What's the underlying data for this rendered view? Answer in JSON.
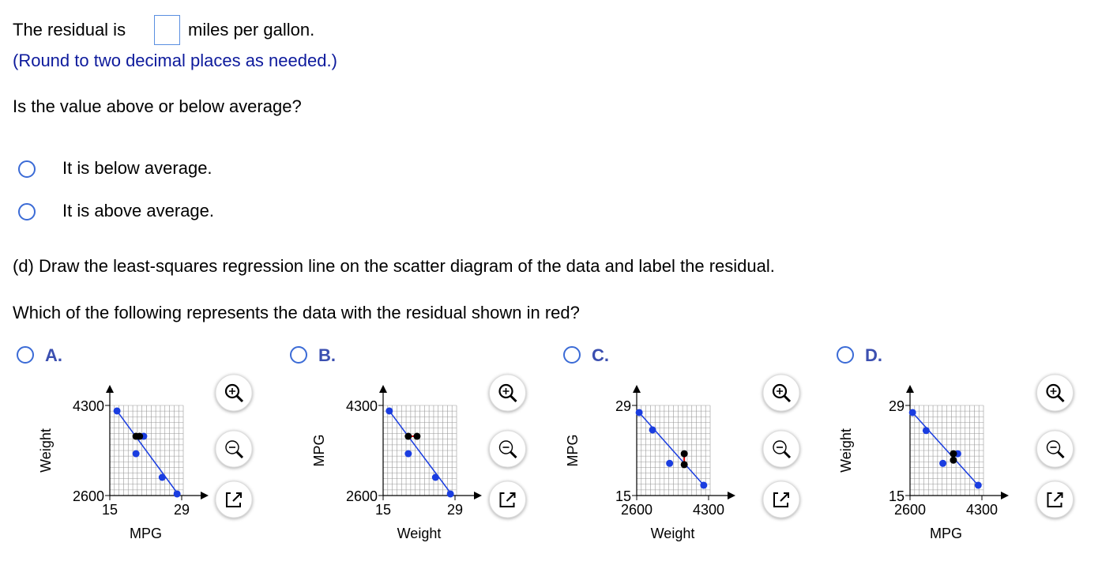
{
  "question": {
    "residual_prefix": "The residual is",
    "residual_suffix": "miles per gallon.",
    "round_note": "(Round to two decimal places as needed.)",
    "above_below": "Is the value above or below average?",
    "choices": [
      "It is below average.",
      "It is above average."
    ],
    "part_d": "(d) Draw the least-squares regression line on the scatter diagram of the data and label the residual.",
    "which": "Which of the following represents the data with the residual shown in red?"
  },
  "options": [
    {
      "letter": "A.",
      "chart": {
        "type": "scatter",
        "x_label": "MPG",
        "y_label": "Weight",
        "xlim": [
          15,
          29
        ],
        "ylim": [
          2600,
          4300
        ],
        "xticks": [
          15,
          29
        ],
        "yticks": [
          2600,
          4300
        ],
        "series": [
          {
            "color": "#1a3de0",
            "x": [
              16.4,
              21.6,
              20.1,
              25.2,
              28.1
            ],
            "y": [
              4196,
              3718,
              3390,
              2943,
              2630
            ]
          },
          {
            "color": "#000000",
            "x": [
              20.1,
              20.8
            ],
            "y": [
              3718,
              3718
            ]
          }
        ],
        "line": {
          "color": "#1a3de0",
          "x": [
            16.4,
            28.5
          ],
          "y": [
            4196,
            2600
          ]
        }
      }
    },
    {
      "letter": "B.",
      "chart": {
        "type": "scatter",
        "x_label": "Weight",
        "y_label": "MPG",
        "xlim": [
          15,
          29
        ],
        "ylim": [
          2600,
          4300
        ],
        "xticks": [
          15,
          29
        ],
        "yticks": [
          2600,
          4300
        ],
        "series": [
          {
            "color": "#1a3de0",
            "x": [
              16.2,
              19.9,
              25.2,
              28.1
            ],
            "y": [
              4196,
              3390,
              2943,
              2630
            ]
          },
          {
            "color": "#000000",
            "x": [
              19.9,
              21.6
            ],
            "y": [
              3718,
              3718
            ]
          }
        ],
        "line": {
          "color": "#1a3de0",
          "x": [
            16.2,
            28.5
          ],
          "y": [
            4196,
            2600
          ]
        }
      }
    },
    {
      "letter": "C.",
      "chart": {
        "type": "scatter",
        "x_label": "Weight",
        "y_label": "MPG",
        "xlim": [
          2600,
          4300
        ],
        "ylim": [
          15,
          29
        ],
        "xticks": [
          2600,
          4300
        ],
        "yticks": [
          15,
          29
        ],
        "series": [
          {
            "color": "#1a3de0",
            "x": [
              2658,
              2975,
              3378,
              4185
            ],
            "y": [
              27.9,
              25.2,
              20.0,
              16.6
            ]
          },
          {
            "color": "#000000",
            "x": [
              3724,
              3724
            ],
            "y": [
              21.5,
              19.8
            ]
          }
        ],
        "line": {
          "color": "#1a3de0",
          "x": [
            2658,
            4185
          ],
          "y": [
            27.9,
            16.6
          ]
        }
      }
    },
    {
      "letter": "D.",
      "chart": {
        "type": "scatter",
        "x_label": "MPG",
        "y_label": "Weight",
        "xlim": [
          2600,
          4300
        ],
        "ylim": [
          15,
          29
        ],
        "xticks": [
          2600,
          4300
        ],
        "yticks": [
          15,
          29
        ],
        "series": [
          {
            "color": "#1a3de0",
            "x": [
              2659,
              2981,
              3377,
              3728,
              4212
            ],
            "y": [
              27.9,
              25.1,
              20.0,
              21.5,
              16.6
            ]
          },
          {
            "color": "#000000",
            "x": [
              3626,
              3626
            ],
            "y": [
              21.5,
              20.5
            ]
          }
        ],
        "line": {
          "color": "#1a3de0",
          "x": [
            2659,
            4212
          ],
          "y": [
            27.9,
            16.6
          ]
        }
      }
    }
  ]
}
